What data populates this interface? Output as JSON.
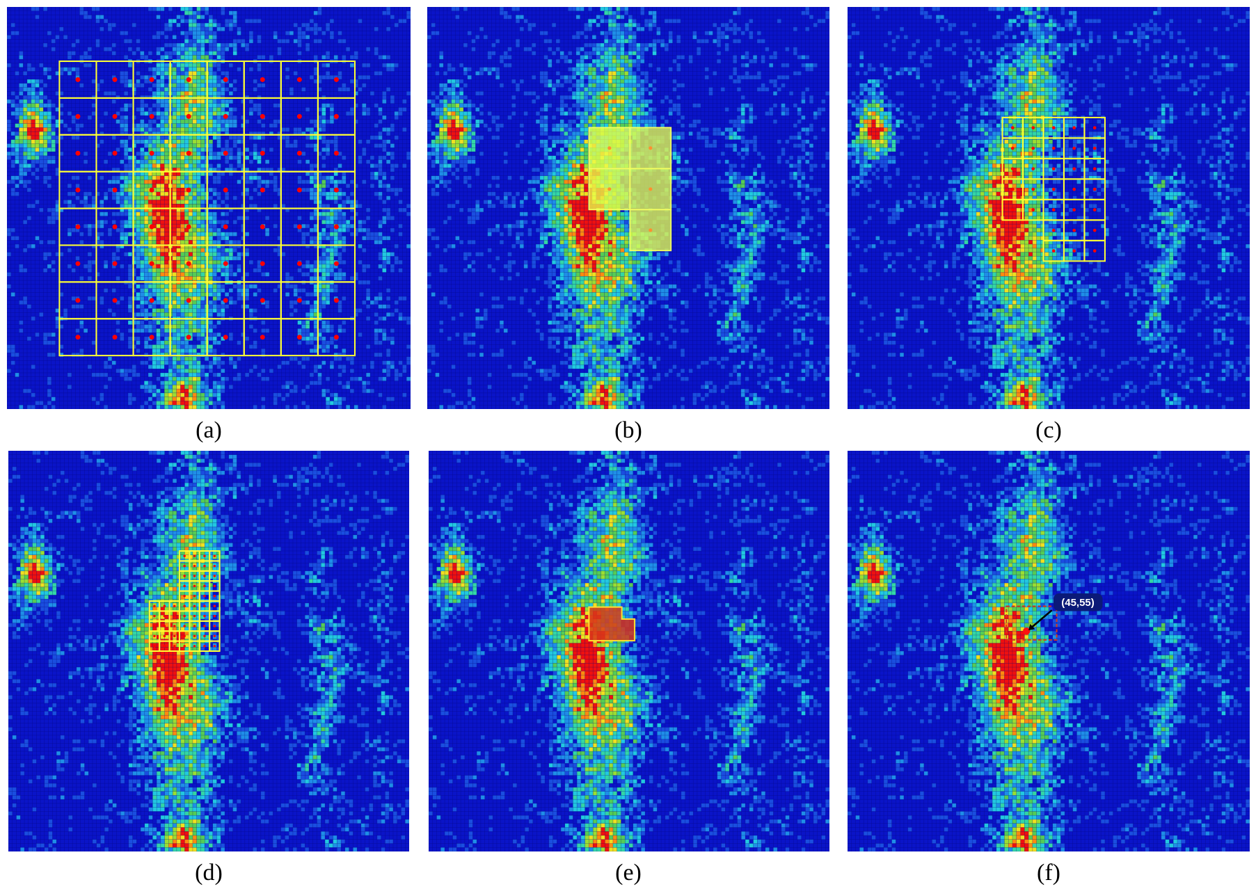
{
  "panels": [
    {
      "id": "a",
      "caption": "(a)"
    },
    {
      "id": "b",
      "caption": "(b)"
    },
    {
      "id": "c",
      "caption": "(c)"
    },
    {
      "id": "d",
      "caption": "(d)"
    },
    {
      "id": "e",
      "caption": "(e)"
    },
    {
      "id": "f",
      "caption": "(f)",
      "callout": "(45,55)"
    }
  ],
  "colors": {
    "background_low": "#0a14c8",
    "grid_yellow": "#ffff33",
    "marker_red": "#ff0000",
    "selection_yellow": "#e8ff4a",
    "selection_red": "#d83a1a",
    "callout_bg": "#0b1a78"
  }
}
